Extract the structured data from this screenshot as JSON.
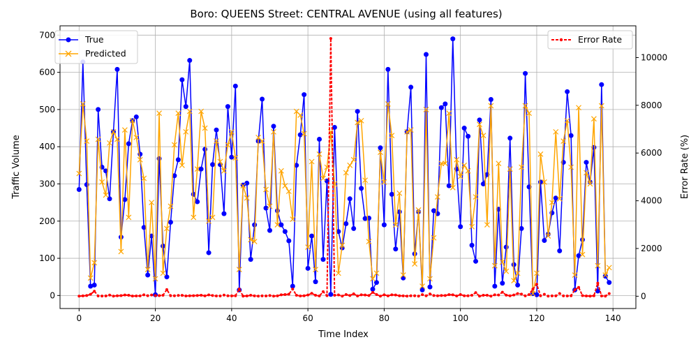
{
  "chart_data": {
    "type": "line",
    "title": "Boro: QUEENS Street: CENTRAL AVENUE (using all features)",
    "xlabel": "Time Index",
    "ylabel": "Traffic Volume",
    "y2label": "Error Rate (%)",
    "xlim": [
      -5,
      146
    ],
    "ylim": [
      -35,
      725
    ],
    "y2lim": [
      -515,
      11330
    ],
    "xticks": [
      0,
      20,
      40,
      60,
      80,
      100,
      120,
      140
    ],
    "yticks": [
      0,
      100,
      200,
      300,
      400,
      500,
      600,
      700
    ],
    "y2ticks": [
      0,
      2000,
      4000,
      6000,
      8000,
      10000
    ],
    "grid": true,
    "legend_left_placement": "upper-left",
    "legend_right_placement": "upper-right",
    "series": [
      {
        "name": "True",
        "axis": "left",
        "color": "#0000ff",
        "marker": "circle",
        "values": [
          285,
          628,
          298,
          25,
          28,
          500,
          345,
          335,
          260,
          440,
          608,
          157,
          258,
          408,
          470,
          480,
          380,
          183,
          55,
          160,
          2,
          368,
          133,
          50,
          197,
          322,
          365,
          580,
          508,
          632,
          272,
          252,
          340,
          393,
          115,
          352,
          445,
          352,
          220,
          508,
          372,
          563,
          15,
          297,
          302,
          97,
          190,
          415,
          528,
          235,
          175,
          455,
          228,
          190,
          172,
          147,
          25,
          350,
          432,
          540,
          73,
          160,
          37,
          420,
          97,
          308,
          3,
          452,
          172,
          128,
          193,
          260,
          180,
          495,
          288,
          207,
          208,
          17,
          35,
          397,
          190,
          608,
          272,
          125,
          225,
          47,
          440,
          560,
          112,
          225,
          15,
          648,
          23,
          228,
          220,
          505,
          515,
          295,
          690,
          340,
          185,
          450,
          428,
          135,
          92,
          472,
          300,
          325,
          527,
          25,
          232,
          33,
          130,
          423,
          83,
          28,
          180,
          597,
          292,
          5,
          2,
          305,
          148,
          165,
          222,
          262,
          120,
          358,
          548,
          430,
          15,
          107,
          150,
          358,
          305,
          398,
          12,
          567,
          52,
          35
        ]
      },
      {
        "name": "Predicted",
        "axis": "left",
        "color": "#ffa500",
        "marker": "x",
        "values": [
          328,
          515,
          415,
          47,
          88,
          420,
          305,
          270,
          410,
          440,
          420,
          118,
          445,
          210,
          470,
          425,
          365,
          315,
          70,
          250,
          45,
          490,
          60,
          180,
          240,
          405,
          490,
          350,
          440,
          495,
          210,
          340,
          495,
          450,
          200,
          210,
          415,
          360,
          335,
          405,
          440,
          370,
          70,
          295,
          262,
          150,
          145,
          425,
          415,
          285,
          240,
          440,
          190,
          335,
          295,
          280,
          205,
          495,
          485,
          435,
          130,
          360,
          70,
          380,
          315,
          345,
          440,
          300,
          60,
          135,
          330,
          350,
          365,
          465,
          470,
          310,
          145,
          45,
          60,
          385,
          305,
          515,
          430,
          190,
          275,
          55,
          440,
          445,
          85,
          230,
          25,
          500,
          45,
          155,
          265,
          355,
          355,
          490,
          290,
          365,
          320,
          350,
          335,
          185,
          265,
          460,
          430,
          190,
          510,
          80,
          355,
          90,
          65,
          340,
          40,
          60,
          345,
          510,
          490,
          5,
          60,
          380,
          305,
          160,
          250,
          440,
          260,
          415,
          470,
          345,
          55,
          505,
          110,
          330,
          300,
          475,
          80,
          510,
          55,
          75
        ]
      },
      {
        "name": "Error Rate",
        "axis": "right",
        "color": "#ff0000",
        "style": "dashed",
        "marker": "dot",
        "values": [
          5,
          15,
          30,
          80,
          210,
          12,
          8,
          10,
          48,
          5,
          20,
          25,
          50,
          40,
          6,
          11,
          15,
          60,
          22,
          50,
          30,
          25,
          40,
          280,
          22,
          20,
          32,
          36,
          10,
          20,
          22,
          30,
          40,
          14,
          55,
          30,
          10,
          12,
          48,
          18,
          15,
          20,
          300,
          5,
          10,
          40,
          15,
          5,
          15,
          12,
          30,
          5,
          15,
          60,
          70,
          85,
          300,
          40,
          10,
          20,
          50,
          120,
          40,
          10,
          190,
          25,
          10800,
          40,
          55,
          5,
          70,
          30,
          100,
          10,
          60,
          50,
          30,
          160,
          70,
          5,
          60,
          15,
          58,
          50,
          20,
          15,
          5,
          20,
          20,
          5,
          65,
          20,
          95,
          30,
          20,
          30,
          30,
          65,
          60,
          10,
          70,
          20,
          20,
          40,
          150,
          5,
          40,
          40,
          5,
          60,
          50,
          170,
          45,
          20,
          50,
          110,
          90,
          15,
          70,
          300,
          500,
          20,
          80,
          5,
          15,
          15,
          115,
          15,
          10,
          20,
          270,
          370,
          25,
          10,
          5,
          20,
          550,
          10,
          5,
          110
        ]
      }
    ]
  }
}
